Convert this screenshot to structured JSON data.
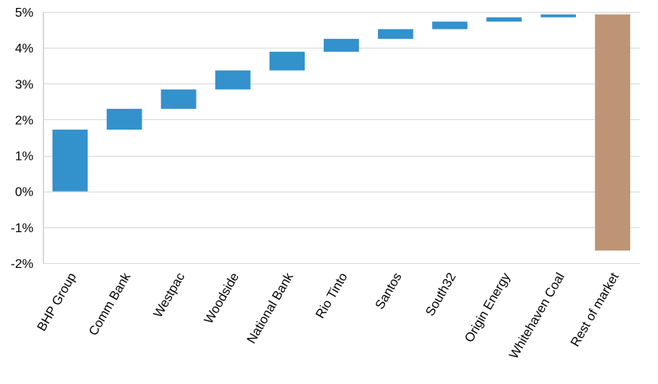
{
  "chart_data": {
    "type": "bar",
    "subtype": "waterfall",
    "title": "",
    "xlabel": "",
    "ylabel": "",
    "ylim": [
      -2,
      5
    ],
    "yticks": [
      -2,
      -1,
      0,
      1,
      2,
      3,
      4,
      5
    ],
    "ytick_labels": [
      "-2%",
      "-1%",
      "0%",
      "1%",
      "2%",
      "3%",
      "4%",
      "5%"
    ],
    "grid": true,
    "legend": "none",
    "categories": [
      "BHP Group",
      "Comm Bank",
      "Westpac",
      "Woodside",
      "National Bank",
      "Rio Tinto",
      "Santos",
      "South32",
      "Origin Energy",
      "Whitehaven Coal",
      "Rest of market"
    ],
    "start": [
      0,
      1.72,
      2.3,
      2.84,
      3.37,
      3.89,
      4.25,
      4.52,
      4.73,
      4.85,
      -1.65
    ],
    "end": [
      1.72,
      2.3,
      2.84,
      3.37,
      3.89,
      4.25,
      4.52,
      4.73,
      4.85,
      4.93,
      4.93
    ],
    "colors": {
      "contribution": "#3391cc",
      "rest": "#be9574"
    },
    "bar_colors": [
      "contribution",
      "contribution",
      "contribution",
      "contribution",
      "contribution",
      "contribution",
      "contribution",
      "contribution",
      "contribution",
      "contribution",
      "rest"
    ]
  }
}
